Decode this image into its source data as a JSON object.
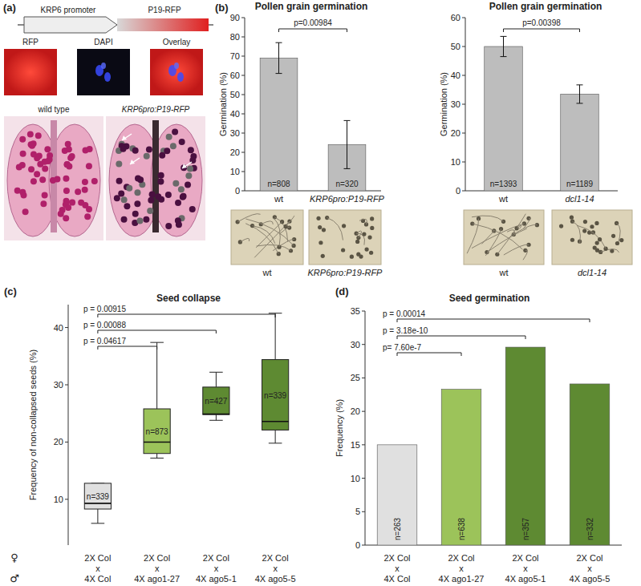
{
  "diagram": {
    "panel_label": "(a)",
    "construct": {
      "promoter": "KRP6 promoter",
      "gene": "P19-RFP"
    },
    "channels": [
      "RFP",
      "DAPI",
      "Overlay"
    ],
    "anthers": [
      "wild type",
      "KRP6pro:P19-RFP"
    ]
  },
  "chart_data": [
    {
      "type": "bar",
      "panel_label": "(b)",
      "title": "Pollen grain germination",
      "y_label": "Germination (%)",
      "categories": [
        "wt",
        "KRP6pro:P19-RFP"
      ],
      "values": [
        69,
        24
      ],
      "errors": [
        8,
        12.5
      ],
      "color": "#bdbdbd",
      "ylim": [
        0,
        90
      ],
      "yticks": [
        0,
        10,
        20,
        30,
        40,
        50,
        60,
        70,
        80,
        90
      ],
      "n_labels": [
        "n=808",
        "n=320"
      ],
      "comparisons": [
        {
          "label": "p=0.00984",
          "pair": [
            0,
            1
          ]
        }
      ],
      "image_captions": [
        "wt",
        "KRP6pro:P19-RFP"
      ]
    },
    {
      "type": "bar",
      "title": "Pollen grain germination",
      "y_label": "Germination (%)",
      "categories": [
        "wt",
        "dcl1-14"
      ],
      "values": [
        50,
        33.5
      ],
      "errors": [
        3.5,
        3.2
      ],
      "color": "#bdbdbd",
      "ylim": [
        0,
        60
      ],
      "yticks": [
        0,
        10,
        20,
        30,
        40,
        50,
        60
      ],
      "n_labels": [
        "n=1393",
        "n=1189"
      ],
      "comparisons": [
        {
          "label": "p=0.00398",
          "pair": [
            0,
            1
          ]
        }
      ],
      "image_captions": [
        "wt",
        "dcl1-14"
      ]
    },
    {
      "type": "box",
      "panel_label": "(c)",
      "title": "Seed collapse",
      "y_label": "Frequency of non-collapsed seeds (%)",
      "categories": [
        "4X Col",
        "4X ago1-27",
        "4X ago5-1",
        "4X ago5-5"
      ],
      "female_labels": [
        "2X Col",
        "2X Col",
        "2X Col",
        "2X Col"
      ],
      "cross_label": "x",
      "row_symbols": [
        "♀",
        "♂"
      ],
      "min": [
        5.8,
        17.2,
        23.8,
        19.8
      ],
      "q1": [
        8.3,
        18,
        24.8,
        22.1
      ],
      "median": [
        9.3,
        20,
        24.9,
        23.6
      ],
      "q3": [
        12.8,
        25.8,
        29.6,
        34.4
      ],
      "max": [
        12.8,
        37.4,
        32.2,
        42.5
      ],
      "colors": [
        "#e0e0e0",
        "#9cc35a",
        "#5e8a32",
        "#5e8a32"
      ],
      "ylim": [
        2,
        44
      ],
      "yticks": [
        10,
        20,
        30,
        40
      ],
      "n_labels": [
        "n=339",
        "n=873",
        "n=427",
        "n=339"
      ],
      "comparisons": [
        {
          "label": "p = 0.00915",
          "pair": [
            0,
            3
          ]
        },
        {
          "label": "p = 0.00088",
          "pair": [
            0,
            2
          ]
        },
        {
          "label": "p = 0.04617",
          "pair": [
            0,
            1
          ]
        }
      ]
    },
    {
      "type": "bar",
      "panel_label": "(d)",
      "title": "Seed germination",
      "y_label": "Frequency (%)",
      "categories": [
        "4X Col",
        "4X ago1-27",
        "4X ago5-1",
        "4X ago5-5"
      ],
      "female_labels": [
        "2X Col",
        "2X Col",
        "2X Col",
        "2X Col"
      ],
      "cross_label": "x",
      "values": [
        15,
        23.3,
        29.6,
        24.1
      ],
      "colors": [
        "#e0e0e0",
        "#9cc35a",
        "#5e8a32",
        "#5e8a32"
      ],
      "ylim": [
        0,
        35
      ],
      "yticks": [
        0,
        5,
        10,
        15,
        20,
        25,
        30,
        35
      ],
      "n_labels": [
        "n=263",
        "n=638",
        "n=357",
        "n=332"
      ],
      "comparisons": [
        {
          "label": "p = 0.00014",
          "pair": [
            0,
            3
          ]
        },
        {
          "label": "p = 3.18e-10",
          "pair": [
            0,
            2
          ]
        },
        {
          "label": "p= 7.60e-7",
          "pair": [
            0,
            1
          ]
        }
      ]
    }
  ]
}
